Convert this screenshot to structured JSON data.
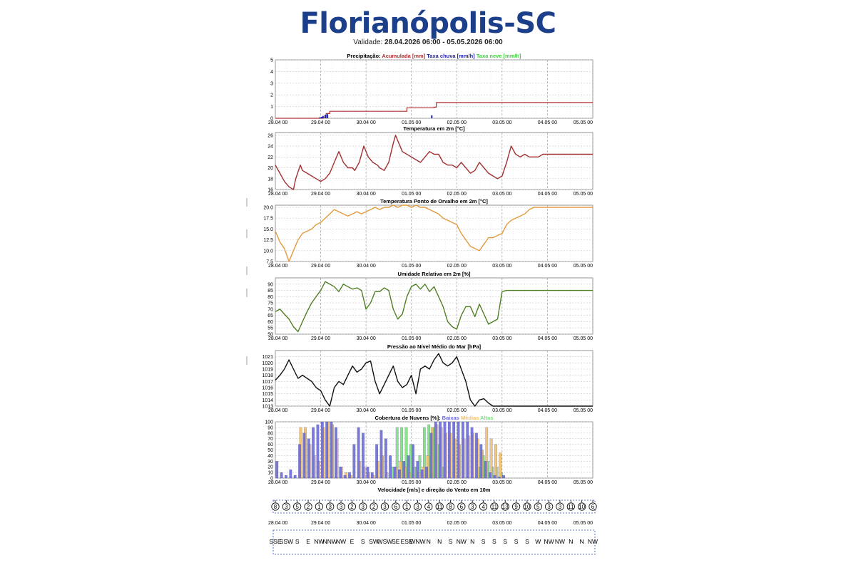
{
  "header": {
    "title": "Florianópolis-SC",
    "validity_label": "Validade:",
    "validity_range": "28.04.2026 06:00 - 05.05.2026 06:00"
  },
  "x_ticks": [
    "28.04 00",
    "29.04 00",
    "30.04 00",
    "01.05 00",
    "02.05 00",
    "03.05 00",
    "04.05 00",
    "05.05 00"
  ],
  "colors": {
    "accumulated": "#b03030",
    "rain": "#1f1fb0",
    "snow": "#3ecf3e",
    "temperature": "#a33030",
    "dewpoint": "#e39a3e",
    "humidity": "#4f7f25",
    "pressure": "#111111",
    "cloud_low": "#6b6bd6",
    "cloud_mid": "#f0c06a",
    "cloud_high": "#7fe07f",
    "title_blue": "#1b3f8b"
  },
  "chart_data": [
    {
      "type": "bar",
      "id": "precip",
      "title_prefix": "Precipitação:",
      "legend": [
        {
          "label": "Acumulada [mm]",
          "color_key": "accumulated"
        },
        {
          "label": "Taxa chuva [mm/h]",
          "color_key": "rain"
        },
        {
          "label": "Taxa neve [mm/h]",
          "color_key": "snow"
        }
      ],
      "ylim": [
        0,
        5
      ],
      "yticks": [
        "0",
        "1",
        "2",
        "3",
        "4",
        "5"
      ],
      "series": [
        {
          "name": "Acumulada [mm]",
          "kind": "step",
          "x": [
            0,
            1.05,
            1.12,
            1.2,
            2.8,
            2.9,
            3.5,
            3.55,
            7.0
          ],
          "values": [
            0,
            0.05,
            0.4,
            0.6,
            0.6,
            0.9,
            0.95,
            1.35,
            1.35
          ]
        },
        {
          "name": "Taxa chuva [mm/h]",
          "kind": "bars",
          "x": [
            0.98,
            1.02,
            1.05,
            1.1,
            1.15,
            3.45
          ],
          "values": [
            0.08,
            0.12,
            0.2,
            0.3,
            0.35,
            0.25
          ]
        }
      ]
    },
    {
      "type": "line",
      "id": "temp",
      "title": "Temperatura em 2m [°C]",
      "ylim": [
        16,
        26.5
      ],
      "yticks": [
        "16",
        "18",
        "20",
        "22",
        "24",
        "26"
      ],
      "series": [
        {
          "name": "Temperatura em 2m [°C]",
          "color_key": "temperature",
          "x": [
            0,
            0.1,
            0.2,
            0.3,
            0.4,
            0.45,
            0.55,
            0.6,
            0.7,
            0.8,
            0.9,
            1.0,
            1.1,
            1.2,
            1.3,
            1.4,
            1.5,
            1.6,
            1.7,
            1.75,
            1.85,
            1.95,
            2.05,
            2.15,
            2.25,
            2.3,
            2.4,
            2.5,
            2.6,
            2.65,
            2.7,
            2.8,
            2.9,
            3.0,
            3.1,
            3.2,
            3.3,
            3.4,
            3.5,
            3.6,
            3.7,
            3.8,
            3.9,
            4.0,
            4.1,
            4.2,
            4.3,
            4.4,
            4.5,
            4.6,
            4.7,
            4.8,
            4.9,
            5.0,
            5.1,
            5.2,
            5.3,
            5.4,
            5.5,
            5.6,
            5.7,
            5.8,
            5.9,
            6.0,
            6.1,
            6.2,
            6.3,
            6.4,
            6.5,
            6.6,
            6.7,
            6.8,
            6.9,
            7.0
          ],
          "values": [
            20.5,
            19,
            17.5,
            16.5,
            16,
            18,
            20.5,
            19.5,
            19,
            18.5,
            18,
            17.5,
            18,
            19,
            21,
            23,
            21,
            20,
            20,
            19.5,
            21,
            24,
            22,
            21,
            20.5,
            20,
            19.5,
            21,
            24.5,
            26,
            25,
            23,
            22.5,
            22,
            21.5,
            21,
            22,
            23,
            22.5,
            22.5,
            21,
            20.5,
            20.5,
            20,
            21,
            20,
            19,
            19.5,
            21,
            20,
            19,
            18.5,
            18,
            18.5,
            21,
            24,
            22.5,
            22,
            22.5,
            22,
            22,
            22,
            22.5,
            22.5,
            22.5,
            22.5,
            22.5,
            22.5,
            22.5,
            22.5,
            22.5,
            22.5,
            22.5,
            22.5
          ]
        }
      ]
    },
    {
      "type": "line",
      "id": "dew",
      "title": "Temperatura Ponto de Orvalho em 2m [°C]",
      "ylim": [
        7.5,
        20.5
      ],
      "yticks": [
        "7.5",
        "10.0",
        "12.5",
        "15.0",
        "17.5",
        "20.0"
      ],
      "series": [
        {
          "name": "Temperatura Ponto de Orvalho em 2m [°C]",
          "color_key": "dewpoint",
          "x": [
            0,
            0.1,
            0.2,
            0.3,
            0.4,
            0.5,
            0.6,
            0.7,
            0.8,
            0.9,
            1.0,
            1.1,
            1.2,
            1.3,
            1.4,
            1.5,
            1.6,
            1.7,
            1.8,
            1.9,
            2.0,
            2.1,
            2.2,
            2.3,
            2.4,
            2.5,
            2.6,
            2.7,
            2.8,
            2.9,
            3.0,
            3.1,
            3.2,
            3.3,
            3.4,
            3.5,
            3.6,
            3.7,
            3.8,
            3.9,
            4.0,
            4.1,
            4.2,
            4.3,
            4.4,
            4.5,
            4.6,
            4.7,
            4.8,
            4.9,
            5.0,
            5.1,
            5.2,
            5.3,
            5.4,
            5.5,
            5.6,
            5.7,
            5.8,
            5.9,
            6.0,
            6.1,
            6.2,
            6.3,
            6.4,
            6.5,
            6.6,
            6.7,
            6.8,
            6.9,
            7.0
          ],
          "values": [
            14.5,
            12,
            10.5,
            7.5,
            10,
            12.5,
            14,
            14.5,
            15,
            16,
            16.5,
            17.5,
            18.5,
            19.5,
            19,
            18.5,
            18,
            18.5,
            19,
            18.5,
            19,
            19.5,
            20,
            19.5,
            20,
            20,
            20.5,
            20,
            20.5,
            20.5,
            20,
            20.5,
            20,
            20,
            19.5,
            19,
            18.5,
            17.5,
            17,
            16.5,
            16,
            14,
            12.5,
            11,
            10.5,
            10,
            11.5,
            13,
            13,
            13.5,
            14,
            16,
            17,
            17.5,
            18,
            18.5,
            19.5,
            20,
            20,
            20,
            20,
            20,
            20,
            20,
            20,
            20,
            20,
            20,
            20,
            20,
            20
          ]
        }
      ]
    },
    {
      "type": "line",
      "id": "rh",
      "title": "Umidade Relativa em 2m [%]",
      "ylim": [
        50,
        95
      ],
      "yticks": [
        "50",
        "55",
        "60",
        "65",
        "70",
        "75",
        "80",
        "85",
        "90"
      ],
      "series": [
        {
          "name": "Umidade Relativa em 2m [%]",
          "color_key": "humidity",
          "x": [
            0,
            0.1,
            0.2,
            0.3,
            0.4,
            0.5,
            0.6,
            0.7,
            0.8,
            0.9,
            1.0,
            1.1,
            1.2,
            1.3,
            1.4,
            1.5,
            1.6,
            1.7,
            1.8,
            1.9,
            2.0,
            2.1,
            2.2,
            2.3,
            2.4,
            2.5,
            2.6,
            2.7,
            2.8,
            2.9,
            3.0,
            3.1,
            3.2,
            3.3,
            3.4,
            3.5,
            3.6,
            3.7,
            3.8,
            3.9,
            4.0,
            4.1,
            4.2,
            4.3,
            4.4,
            4.5,
            4.6,
            4.7,
            4.8,
            4.9,
            5.0,
            5.1,
            5.2,
            5.3,
            5.4,
            5.5,
            5.6,
            5.7,
            5.8,
            5.9,
            6.0,
            6.1,
            6.2,
            6.3,
            6.4,
            6.5,
            6.6,
            6.7,
            6.8,
            6.9,
            7.0
          ],
          "values": [
            68,
            70,
            66,
            62,
            56,
            52,
            60,
            68,
            75,
            80,
            85,
            92,
            90,
            88,
            84,
            90,
            88,
            86,
            87,
            85,
            70,
            75,
            84,
            84,
            87,
            85,
            70,
            62,
            66,
            80,
            88,
            90,
            86,
            90,
            84,
            88,
            80,
            72,
            60,
            56,
            54,
            65,
            72,
            72,
            64,
            74,
            66,
            58,
            60,
            62,
            84,
            85,
            85,
            85,
            85,
            85,
            85,
            85,
            85,
            85,
            85,
            85,
            85,
            85,
            85,
            85,
            85,
            85,
            85,
            85,
            85
          ]
        }
      ]
    },
    {
      "type": "line",
      "id": "pres",
      "title": "Pressão ao Nível Médio do Mar [hPa]",
      "ylim": [
        1013,
        1022
      ],
      "yticks": [
        "1013",
        "1014",
        "1015",
        "1016",
        "1017",
        "1018",
        "1019",
        "1020",
        "1021"
      ],
      "series": [
        {
          "name": "Pressão ao Nível Médio do Mar [hPa]",
          "color_key": "pressure",
          "x": [
            0,
            0.1,
            0.2,
            0.3,
            0.4,
            0.5,
            0.6,
            0.7,
            0.8,
            0.9,
            1.0,
            1.1,
            1.2,
            1.3,
            1.4,
            1.5,
            1.6,
            1.7,
            1.8,
            1.9,
            2.0,
            2.1,
            2.2,
            2.3,
            2.4,
            2.5,
            2.6,
            2.7,
            2.8,
            2.9,
            3.0,
            3.1,
            3.2,
            3.3,
            3.4,
            3.5,
            3.6,
            3.7,
            3.8,
            3.9,
            4.0,
            4.1,
            4.2,
            4.3,
            4.4,
            4.5,
            4.6,
            4.7,
            4.8,
            4.9,
            5.0,
            5.1,
            5.2,
            5.3,
            5.4,
            5.5,
            5.6,
            5.7,
            5.8,
            5.9,
            6.0,
            6.1,
            6.2,
            6.3,
            6.4,
            6.5,
            6.6,
            6.7,
            6.8,
            6.9,
            7.0
          ],
          "values": [
            1017.2,
            1018,
            1019,
            1020.5,
            1019,
            1017.5,
            1018,
            1017.5,
            1017,
            1016,
            1015.5,
            1014,
            1013,
            1016,
            1017,
            1016.5,
            1018,
            1019.5,
            1018.5,
            1019,
            1020,
            1020.3,
            1017,
            1015,
            1016.5,
            1018,
            1019.5,
            1017,
            1016,
            1016.5,
            1018,
            1015,
            1019,
            1019.5,
            1019,
            1020.5,
            1021.5,
            1020,
            1019.5,
            1020,
            1021,
            1019,
            1017,
            1014,
            1013,
            1014,
            1014.2,
            1013.5,
            1013,
            1013,
            1013,
            1013,
            1013,
            1013,
            1013,
            1013,
            1013,
            1013,
            1013,
            1013,
            1013,
            1013,
            1013,
            1013,
            1013,
            1013,
            1013,
            1013,
            1013,
            1013,
            1013
          ]
        }
      ]
    },
    {
      "type": "bar",
      "id": "cloud",
      "title_prefix": "Cobertura de Nuvens [%]:",
      "legend": [
        {
          "label": "Baixas",
          "color_key": "cloud_low"
        },
        {
          "label": "Médias",
          "color_key": "cloud_mid"
        },
        {
          "label": "Altas",
          "color_key": "cloud_high"
        }
      ],
      "ylim": [
        0,
        100
      ],
      "yticks": [
        "0",
        "10",
        "20",
        "30",
        "40",
        "50",
        "60",
        "70",
        "80",
        "90",
        "100"
      ],
      "x": [
        0,
        0.1,
        0.2,
        0.3,
        0.4,
        0.5,
        0.6,
        0.7,
        0.8,
        0.9,
        1.0,
        1.1,
        1.2,
        1.3,
        1.4,
        1.5,
        1.6,
        1.7,
        1.8,
        1.9,
        2.0,
        2.1,
        2.2,
        2.3,
        2.4,
        2.5,
        2.6,
        2.7,
        2.8,
        2.9,
        3.0,
        3.1,
        3.2,
        3.3,
        3.4,
        3.5,
        3.6,
        3.7,
        3.8,
        3.9,
        4.0,
        4.1,
        4.2,
        4.3,
        4.4,
        4.5,
        4.6,
        4.7,
        4.8,
        4.9,
        5.0,
        5.1,
        5.2,
        5.3,
        5.4,
        5.5,
        5.6,
        5.7,
        5.8,
        5.9,
        6.0,
        6.1,
        6.2,
        6.3,
        6.4,
        6.5,
        6.6,
        6.7,
        6.8,
        6.9
      ],
      "series": [
        {
          "name": "Baixas",
          "color_key": "cloud_low",
          "values": [
            30,
            10,
            5,
            15,
            5,
            60,
            80,
            70,
            90,
            95,
            100,
            100,
            100,
            90,
            20,
            5,
            10,
            60,
            90,
            80,
            20,
            10,
            60,
            85,
            70,
            40,
            20,
            15,
            30,
            40,
            60,
            30,
            15,
            20,
            80,
            100,
            100,
            100,
            100,
            100,
            100,
            100,
            100,
            90,
            80,
            60,
            30,
            10,
            5,
            2,
            5,
            0,
            0,
            0,
            0,
            0,
            0,
            0,
            0,
            0,
            0,
            0,
            0,
            0,
            0,
            0,
            0,
            0,
            0,
            0
          ]
        },
        {
          "name": "Médias",
          "color_key": "cloud_mid",
          "values": [
            0,
            0,
            0,
            0,
            0,
            90,
            90,
            60,
            40,
            30,
            90,
            100,
            95,
            70,
            20,
            10,
            5,
            0,
            30,
            20,
            10,
            5,
            30,
            40,
            10,
            0,
            20,
            30,
            20,
            10,
            20,
            10,
            20,
            40,
            90,
            95,
            90,
            80,
            80,
            70,
            60,
            70,
            75,
            80,
            70,
            50,
            90,
            70,
            60,
            45,
            0,
            0,
            0,
            0,
            0,
            0,
            0,
            0,
            0,
            0,
            0,
            0,
            0,
            0,
            0,
            0,
            0,
            0,
            0,
            0
          ]
        },
        {
          "name": "Altas",
          "color_key": "cloud_high",
          "values": [
            0,
            0,
            0,
            0,
            0,
            0,
            0,
            0,
            0,
            0,
            0,
            0,
            0,
            0,
            0,
            0,
            0,
            0,
            0,
            0,
            0,
            0,
            0,
            0,
            0,
            20,
            90,
            90,
            90,
            60,
            20,
            40,
            90,
            95,
            90,
            60,
            20,
            0,
            0,
            0,
            0,
            0,
            0,
            0,
            20,
            40,
            30,
            20,
            20,
            10,
            0,
            0,
            0,
            0,
            0,
            0,
            0,
            0,
            0,
            0,
            0,
            0,
            0,
            0,
            0,
            0,
            0,
            0,
            0,
            0
          ]
        }
      ]
    },
    {
      "type": "table",
      "id": "wind",
      "title": "Velocidade [m/s] e direção do Vento em 10m",
      "speeds": [
        "8",
        "3",
        "5",
        "2",
        "1",
        "3",
        "3",
        "2",
        "3",
        "2",
        "3",
        "6",
        "1",
        "3",
        "4",
        "11",
        "8",
        "6",
        "3",
        "4",
        "11",
        "13",
        "9",
        "10",
        "5",
        "3",
        "3",
        "11",
        "10",
        "6"
      ],
      "directions": [
        "SSE",
        "SSW",
        "S",
        "E",
        "NW",
        "NNW",
        "NW",
        "E",
        "S",
        "SW",
        "WSW",
        "SE",
        "ESE",
        "WNW",
        "N",
        "N",
        "S",
        "NW",
        "N",
        "S",
        "S",
        "S",
        "S",
        "S",
        "W",
        "NW",
        "NW",
        "N",
        "N",
        "NW"
      ]
    }
  ]
}
